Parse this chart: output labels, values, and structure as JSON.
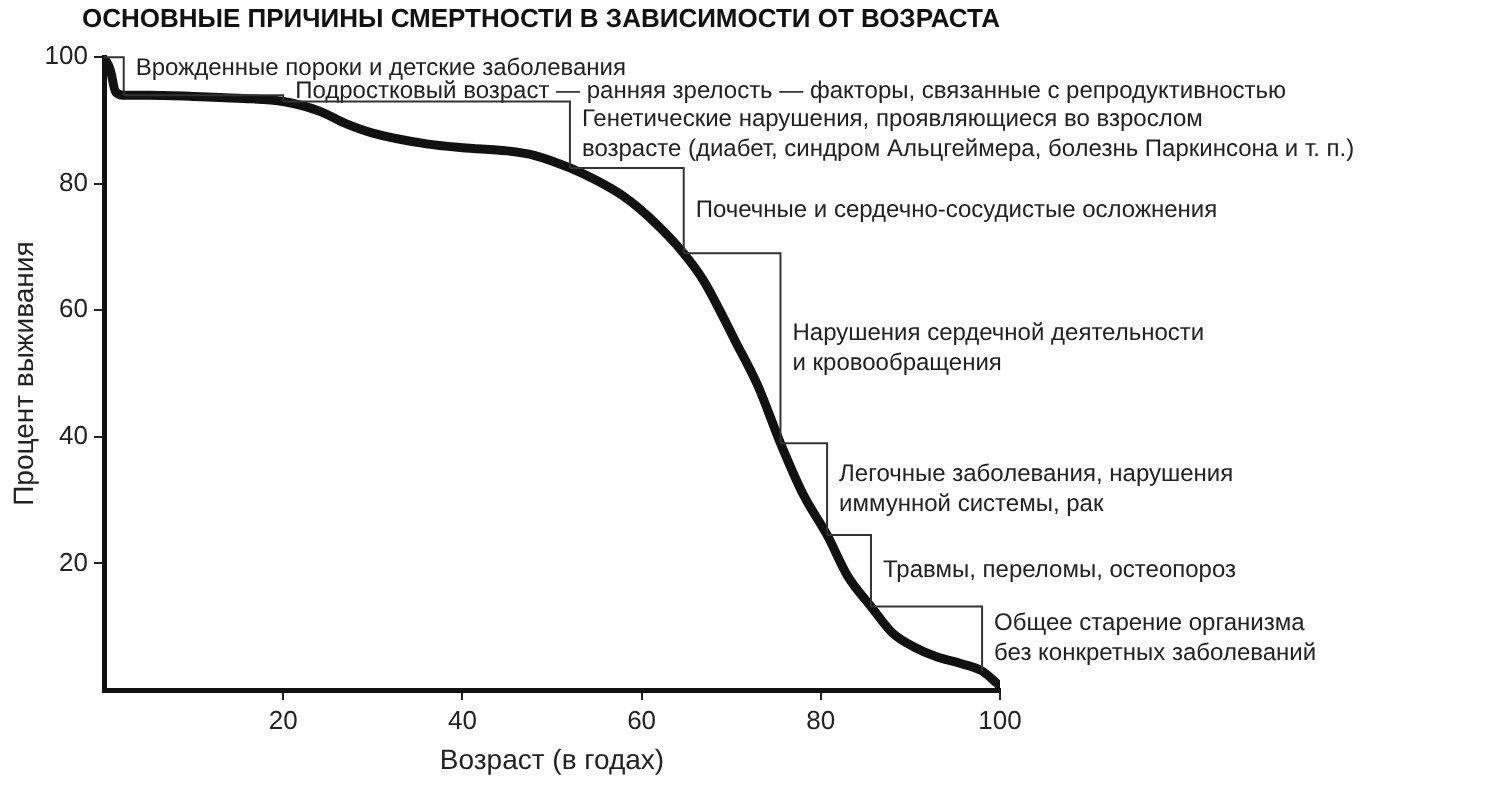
{
  "chart_data": {
    "type": "line",
    "title": "ОСНОВНЫЕ ПРИЧИНЫ СМЕРТНОСТИ В ЗАВИСИМОСТИ ОТ ВОЗРАСТА",
    "xlabel": "Возраст (в годах)",
    "ylabel": "Процент выживания",
    "x": [
      0,
      0.7,
      1.3,
      2.2,
      5,
      10,
      15,
      20,
      24,
      27,
      30,
      36,
      40,
      45,
      48,
      52,
      55,
      58,
      61,
      64.7,
      67,
      70.5,
      73,
      75.5,
      78,
      80.7,
      83,
      85.6,
      88,
      90.4,
      93,
      95.6,
      98,
      100
    ],
    "series": [
      {
        "color": "#111111",
        "values": [
          100,
          98,
          94.5,
          94,
          94,
          93.8,
          93.5,
          93,
          91.5,
          89.5,
          88,
          86.3,
          85.7,
          85.2,
          84.5,
          82.5,
          80.5,
          78,
          74.5,
          69,
          64.5,
          55,
          48,
          39,
          31,
          24.5,
          18,
          13.2,
          9,
          6.8,
          5.2,
          4.2,
          3,
          0.6
        ]
      }
    ],
    "xlim": [
      0,
      100
    ],
    "ylim": [
      0,
      100
    ],
    "xticks": [
      20,
      40,
      60,
      80,
      100
    ],
    "yticks": [
      20,
      40,
      60,
      80,
      100
    ],
    "grid": false,
    "legend": false,
    "marker": "none",
    "line_style": "solid",
    "annotations": [
      {
        "text": "Врожденные пороки и детские заболевания",
        "x": 2.2,
        "y": 94
      },
      {
        "text": "Подростковый возраст — ранняя зрелость — факторы, связанные с репродуктивностью",
        "x": 20,
        "y": 93
      },
      {
        "text": "Генетические нарушения, проявляющиеся во взрослом\nвозрасте (диабет, синдром Альцгеймера, болезнь Паркинсона и т. п.)",
        "x": 52,
        "y": 82.5
      },
      {
        "text": "Почечные и сердечно-сосудистые осложнения",
        "x": 64.7,
        "y": 69
      },
      {
        "text": "Нарушения сердечной деятельности\nи кровообращения",
        "x": 75.5,
        "y": 39
      },
      {
        "text": "Легочные заболевания, нарушения\nиммунной системы, рак",
        "x": 80.7,
        "y": 24.5
      },
      {
        "text": "Травмы, переломы, остеопороз",
        "x": 85.6,
        "y": 13.2
      },
      {
        "text": "Общее старение организма\nбез конкретных заболеваний",
        "x": 98,
        "y": 3
      }
    ]
  }
}
